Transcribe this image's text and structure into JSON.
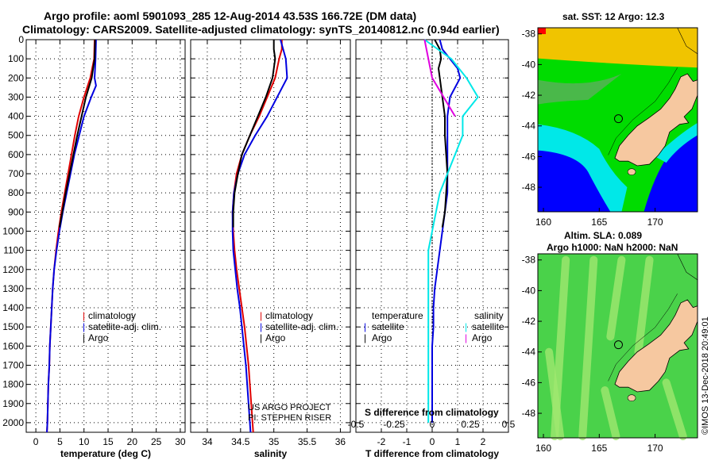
{
  "title_line1": "Argo profile: aoml 5901093_285 12-Aug-2014 43.53S 166.72E (DM data)",
  "title_line2": "Climatology: CARS2009. Satellite-adjusted climatology: synTS_20140812.nc (0.94d earlier)",
  "colors": {
    "climatology": "#e00000",
    "satellite": "#0000e0",
    "argo": "#000000",
    "sal_satellite": "#00e8e8",
    "sal_argo": "#e000e0"
  },
  "legend": {
    "climatology": "climatology",
    "satellite": "satellite-adj. clim.",
    "argo": "Argo"
  },
  "diff_legend": {
    "t_head": "temperature",
    "s_head": "salinity",
    "t_sat": "satellite",
    "t_argo": "Argo",
    "s_sat": "satellite",
    "s_argo": "Argo"
  },
  "project_line1": "US ARGO PROJECT",
  "project_line2": "PI: STEPHEN RISER",
  "s_diff_title": "S difference from climatology",
  "watermark": "©IMOS 13-Dec-2018 20:49:01",
  "map_top": {
    "title": "sat. SST: 12 Argo: 12.3"
  },
  "map_bottom": {
    "title_line1": "Altim. SLA: 0.089",
    "title_line2": "Argo h1000: NaN h2000: NaN"
  },
  "chart_data": [
    {
      "type": "line",
      "xlabel": "temperature (deg C)",
      "ylabel": "",
      "xlim": [
        -2,
        31
      ],
      "ylim": [
        2050,
        0
      ],
      "xticks": [
        0,
        5,
        10,
        15,
        20,
        25,
        30
      ],
      "yticks": [
        0,
        100,
        200,
        300,
        400,
        500,
        600,
        700,
        800,
        900,
        1000,
        1100,
        1200,
        1300,
        1400,
        1500,
        1600,
        1700,
        1800,
        1900,
        2000
      ],
      "grid": true,
      "series": [
        {
          "name": "climatology",
          "color": "#e00000",
          "depth": [
            0,
            100,
            200,
            300,
            400,
            500,
            600,
            700,
            800,
            900,
            1000,
            1100,
            1200,
            1300,
            1400,
            1500,
            1600,
            1700,
            1800,
            1900,
            2000,
            2050
          ],
          "values": [
            12.2,
            12.1,
            11.3,
            10.0,
            8.9,
            8.1,
            7.4,
            6.7,
            6.0,
            5.3,
            4.7,
            4.2,
            3.8,
            3.5,
            3.3,
            3.1,
            2.9,
            2.8,
            2.6,
            2.5,
            2.4,
            2.3
          ]
        },
        {
          "name": "satellite-adj. clim.",
          "color": "#0000e0",
          "depth": [
            0,
            100,
            200,
            240,
            300,
            400,
            500,
            600,
            700,
            800,
            900,
            1000,
            1100,
            1200,
            1300,
            1400,
            1500,
            1600,
            1700,
            1800,
            1900,
            2000,
            2050
          ],
          "values": [
            12.5,
            12.4,
            12.2,
            12.5,
            11.5,
            10.0,
            9.0,
            8.0,
            7.2,
            6.4,
            5.6,
            4.9,
            4.3,
            3.8,
            3.5,
            3.3,
            3.1,
            2.9,
            2.8,
            2.6,
            2.5,
            2.4,
            2.3
          ]
        },
        {
          "name": "Argo",
          "color": "#000000",
          "depth": [
            0,
            100,
            200,
            300,
            400,
            500,
            600,
            700,
            800,
            900,
            980
          ],
          "values": [
            12.3,
            12.2,
            11.6,
            10.4,
            9.5,
            8.6,
            7.8,
            7.0,
            6.2,
            5.5,
            4.9
          ]
        }
      ]
    },
    {
      "type": "line",
      "xlabel": "salinity",
      "ylabel": "",
      "xlim": [
        33.75,
        36.15
      ],
      "ylim": [
        2050,
        0
      ],
      "xticks": [
        34,
        34.5,
        35,
        35.5,
        36
      ],
      "grid": true,
      "series": [
        {
          "name": "climatology",
          "color": "#e00000",
          "depth": [
            0,
            50,
            100,
            150,
            200,
            300,
            400,
            500,
            600,
            700,
            800,
            900,
            1000,
            1100,
            1200,
            1300,
            1400,
            1500,
            1600,
            1700,
            1800,
            1900,
            2000,
            2050
          ],
          "values": [
            35.12,
            35.12,
            35.08,
            35.05,
            35.02,
            34.9,
            34.78,
            34.64,
            34.52,
            34.44,
            34.4,
            34.38,
            34.39,
            34.41,
            34.44,
            34.48,
            34.52,
            34.56,
            34.59,
            34.62,
            34.64,
            34.66,
            34.68,
            34.69
          ]
        },
        {
          "name": "satellite-adj. clim.",
          "color": "#0000e0",
          "depth": [
            0,
            100,
            200,
            300,
            400,
            500,
            600,
            700,
            800,
            900,
            1000,
            1100,
            1200,
            1300,
            1400,
            1500,
            1600,
            1700,
            1800,
            1900,
            2000,
            2050
          ],
          "values": [
            35.1,
            35.18,
            35.2,
            35.05,
            34.9,
            34.72,
            34.56,
            34.46,
            34.4,
            34.38,
            34.38,
            34.39,
            34.42,
            34.45,
            34.49,
            34.52,
            34.55,
            34.58,
            34.6,
            34.62,
            34.64,
            34.65
          ]
        },
        {
          "name": "Argo",
          "color": "#000000",
          "depth": [
            0,
            50,
            100,
            150,
            200,
            300,
            400,
            500,
            600,
            700,
            800,
            900,
            980
          ],
          "values": [
            35.0,
            35.0,
            35.02,
            35.0,
            34.98,
            34.88,
            34.76,
            34.64,
            34.52,
            34.46,
            34.41,
            34.39,
            34.39
          ]
        }
      ]
    },
    {
      "type": "line",
      "xlabel": "T difference from climatology",
      "ylabel": "",
      "xlim": [
        -3,
        3
      ],
      "ylim": [
        2050,
        0
      ],
      "xticks": [
        -2,
        -1,
        0,
        1,
        2
      ],
      "secondary_xlabel": "S difference from climatology",
      "secondary_xticks": [
        -0.5,
        -0.25,
        0,
        0.25,
        0.5
      ],
      "grid": true,
      "series": [
        {
          "name": "temperature satellite",
          "color": "#0000e0",
          "depth": [
            0,
            50,
            100,
            150,
            200,
            250,
            300,
            400,
            500,
            600,
            700,
            800,
            900,
            1000,
            1100,
            1200,
            1300,
            1400,
            1500,
            1600,
            1700,
            1800,
            1900,
            2000
          ],
          "values": [
            0.3,
            0.4,
            0.7,
            1.0,
            1.1,
            0.9,
            0.7,
            0.6,
            0.6,
            0.6,
            0.6,
            0.6,
            0.5,
            0.4,
            0.3,
            0.2,
            0.1,
            0.05,
            0.05,
            0.0,
            0.0,
            0.0,
            0.0,
            0.0
          ]
        },
        {
          "name": "temperature Argo",
          "color": "#000000",
          "depth": [
            0,
            50,
            100,
            150,
            200,
            300,
            400,
            500,
            600,
            700,
            800,
            900,
            980
          ],
          "values": [
            0.1,
            0.3,
            0.35,
            0.25,
            0.3,
            0.4,
            0.5,
            0.5,
            0.55,
            0.6,
            0.55,
            0.5,
            0.4
          ]
        },
        {
          "name": "salinity satellite",
          "color": "#00e8e8",
          "depth": [
            0,
            100,
            200,
            300,
            400,
            500,
            600,
            700,
            800,
            900,
            1000,
            1100,
            1200,
            1300,
            1400,
            1500,
            1600,
            1700,
            1800,
            1900,
            2000
          ],
          "values": [
            -0.1,
            0.25,
            0.45,
            0.6,
            0.4,
            0.4,
            0.3,
            0.2,
            0.1,
            0.05,
            0.0,
            -0.05,
            -0.05,
            -0.05,
            -0.05,
            -0.05,
            -0.05,
            -0.05,
            -0.05,
            -0.05,
            -0.05
          ]
        },
        {
          "name": "salinity Argo",
          "color": "#e000e0",
          "depth": [
            0,
            100,
            200,
            300,
            400
          ],
          "values": [
            -0.1,
            -0.05,
            0.0,
            0.15,
            0.3
          ]
        }
      ]
    }
  ],
  "maps": [
    {
      "name": "sat. SST",
      "lon_ticks": [
        160,
        165,
        170
      ],
      "lat_ticks": [
        -38,
        -40,
        -42,
        -44,
        -46,
        -48
      ]
    },
    {
      "name": "Altim. SLA",
      "lon_ticks": [
        160,
        165,
        170
      ],
      "lat_ticks": [
        -38,
        -40,
        -42,
        -44,
        -46,
        -48
      ]
    }
  ]
}
